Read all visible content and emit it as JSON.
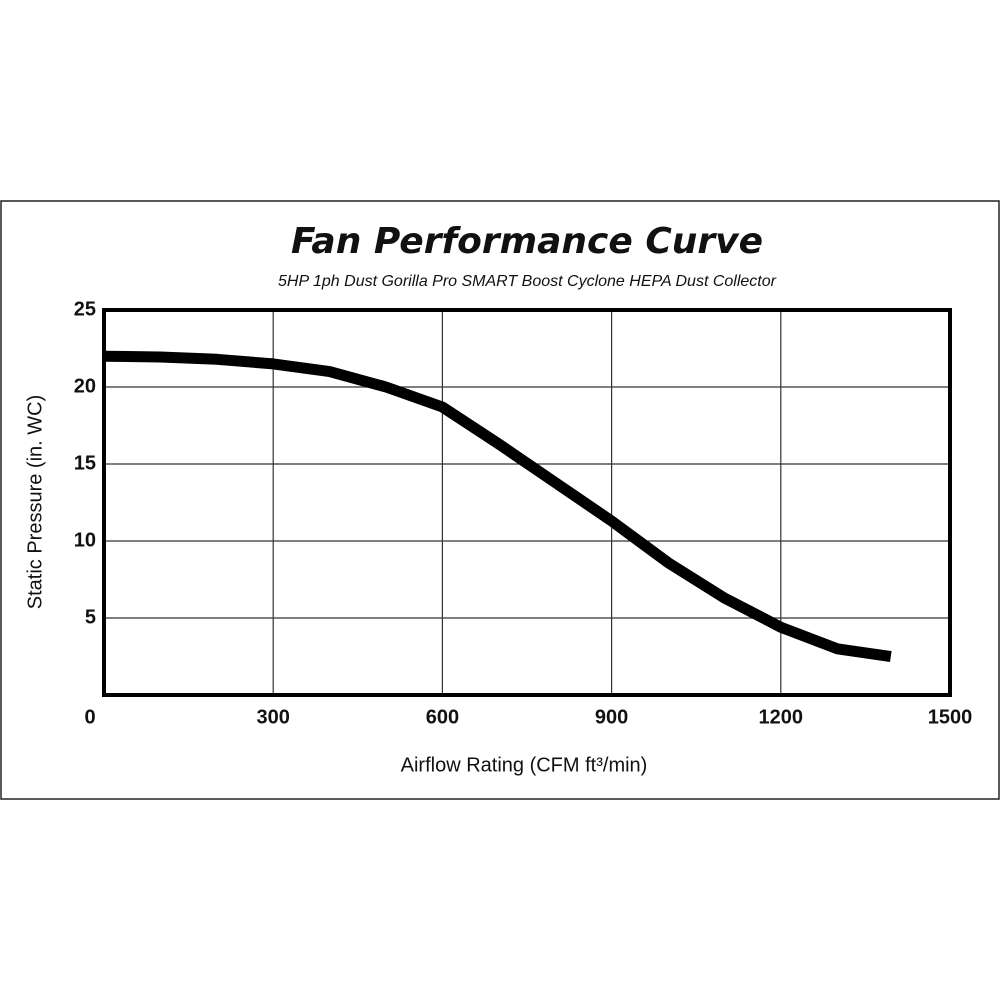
{
  "chart_data": {
    "type": "line",
    "title": "Fan Performance Curve",
    "subtitle": "5HP 1ph Dust Gorilla Pro SMART Boost Cyclone HEPA Dust Collector",
    "x_label": "Airflow Rating (CFM ft³/min)",
    "y_label": "Static Pressure (in. WC)",
    "x": [
      0,
      100,
      200,
      300,
      400,
      500,
      600,
      700,
      800,
      900,
      1000,
      1100,
      1200,
      1300,
      1395
    ],
    "values": [
      22,
      21.95,
      21.8,
      21.5,
      21,
      20,
      18.7,
      16.3,
      13.8,
      11.3,
      8.6,
      6.3,
      4.4,
      3,
      2.5
    ],
    "color": "#000000",
    "xlim": [
      0,
      1500
    ],
    "xticks": [
      0,
      300,
      600,
      900,
      1200,
      1500
    ],
    "ylim": [
      0,
      25
    ],
    "yticks": [
      5,
      10,
      15,
      20,
      25
    ],
    "grid": true
  }
}
